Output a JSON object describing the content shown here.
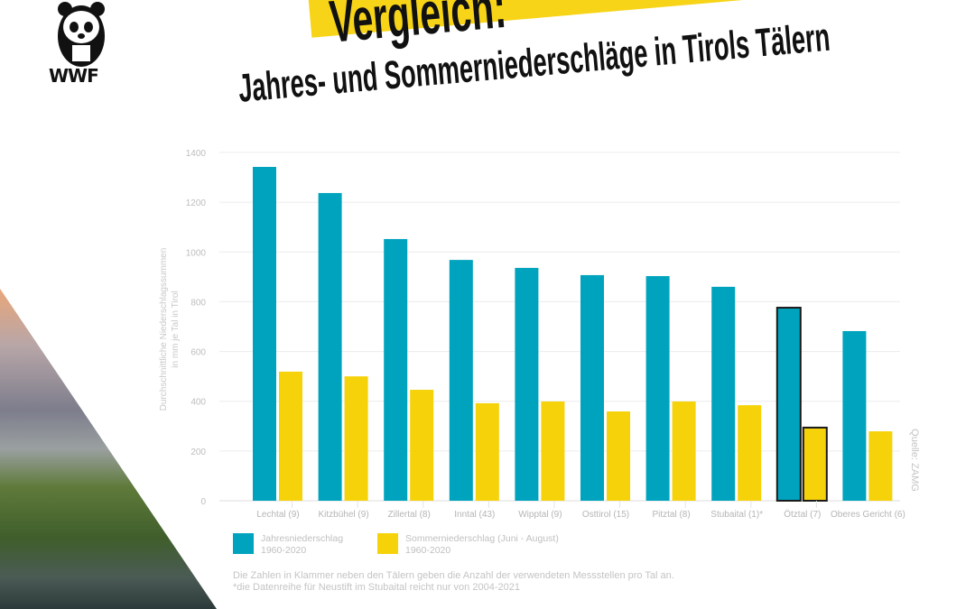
{
  "logo": {
    "text": "WWF"
  },
  "header": {
    "title": "Vergleich:",
    "subtitle": "Jahres- und Sommerniederschläge in Tirols Tälern"
  },
  "colors": {
    "annual": "#00a3bd",
    "summer": "#f6d20a",
    "highlight": "#f7d417"
  },
  "chart_data": {
    "type": "bar",
    "ylabel_line1": "Durchschnittliche Niederschlagssummen",
    "ylabel_line2": "in mm je Tal in Tirol",
    "ylim": [
      0,
      1400
    ],
    "yticks": [
      "0",
      "200",
      "400",
      "600",
      "800",
      "1000",
      "1200",
      "1400"
    ],
    "grid": true,
    "categories": [
      "Lechtal (9)",
      "Kitzbühel (9)",
      "Zillertal (8)",
      "Inntal (43)",
      "Wipptal (9)",
      "Osttirol (15)",
      "Pitztal (8)",
      "Stubaital (1)*",
      "Ötztal (7)",
      "Oberes Gericht (6)"
    ],
    "highlighted_category": "Ötztal (7)",
    "series": [
      {
        "name": "Jahresniederschlag 1960-2020",
        "values": [
          1342,
          1237,
          1052,
          968,
          936,
          907,
          903,
          860,
          776,
          682
        ]
      },
      {
        "name": "Sommerniederschlag (Juni - August) 1960-2020",
        "values": [
          519,
          500,
          446,
          392,
          399,
          359,
          399,
          384,
          294,
          279
        ]
      }
    ],
    "legend_position": "bottom-left"
  },
  "legend": [
    {
      "line1": "Jahresniederschlag",
      "line2": "1960-2020"
    },
    {
      "line1": "Sommerniederschlag (Juni - August)",
      "line2": "1960-2020"
    }
  ],
  "source": "Quelle: ZAMG",
  "notes": [
    "Die Zahlen in Klammer neben den Tälern geben die Anzahl der verwendeten Messstellen pro Tal an.",
    "*die Datenreihe für Neustift im Stubaital reicht nur von 2004-2021"
  ]
}
